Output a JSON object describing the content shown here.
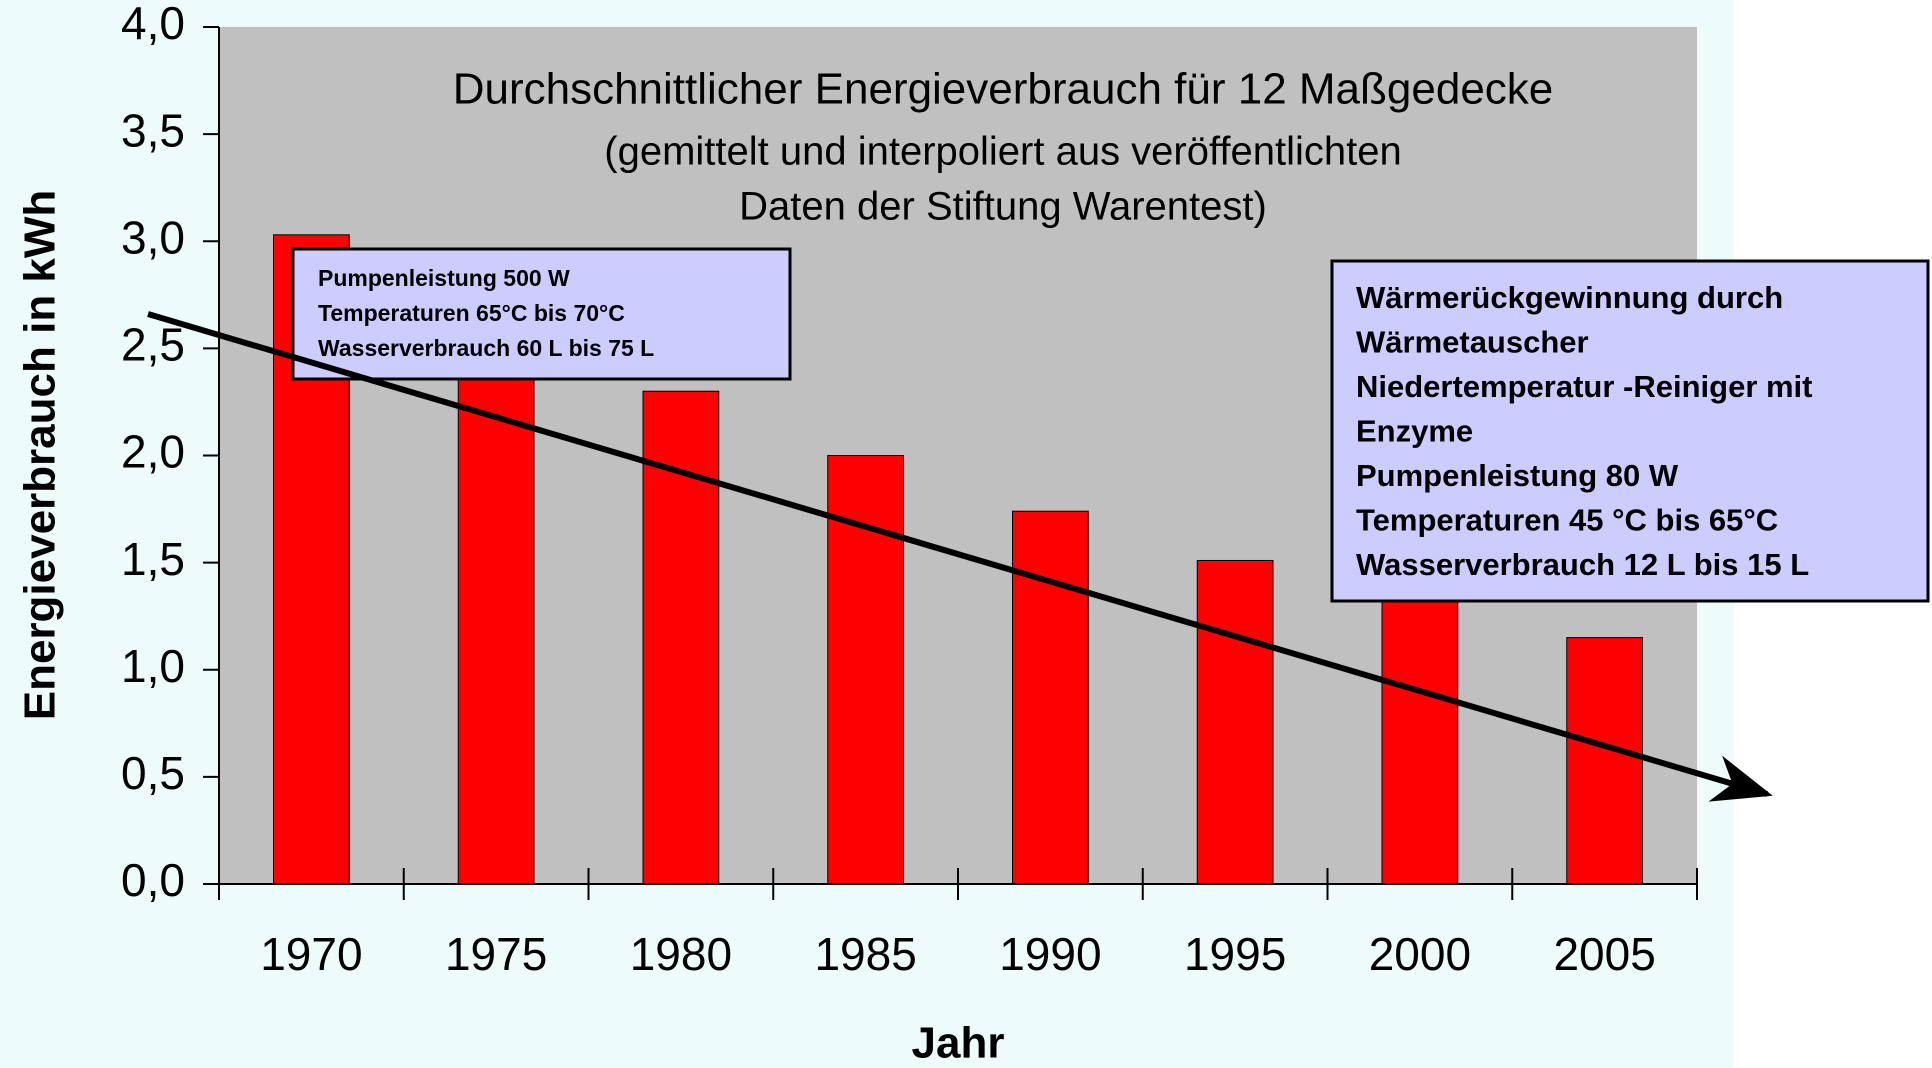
{
  "chart_data": {
    "type": "bar",
    "title": "Durchschnittlicher Energieverbrauch für 12 Maßgedecke",
    "subtitle": [
      "(gemittelt und interpoliert aus veröffentlichten",
      "Daten der Stiftung Warentest)"
    ],
    "x_label": "Jahr",
    "y_label": "Energieverbrauch in kWh",
    "categories": [
      "1970",
      "1975",
      "1980",
      "1985",
      "1990",
      "1995",
      "2000",
      "2005"
    ],
    "values": [
      3.03,
      2.45,
      2.3,
      2.0,
      1.74,
      1.51,
      1.35,
      1.15
    ],
    "color": "#ff0000",
    "ylim": [
      0,
      4
    ],
    "yticks": [
      {
        "value": 0,
        "label": "0,0"
      },
      {
        "value": 0.5,
        "label": "0,5"
      },
      {
        "value": 1,
        "label": "1,0"
      },
      {
        "value": 1.5,
        "label": "1,5"
      },
      {
        "value": 2,
        "label": "2,0"
      },
      {
        "value": 2.5,
        "label": "2,5"
      },
      {
        "value": 3,
        "label": "3,0"
      },
      {
        "value": 3.5,
        "label": "3,5"
      },
      {
        "value": 4,
        "label": "4,0"
      }
    ],
    "grid": true,
    "annotations": [
      [
        "Pumpenleistung 500 W",
        "Temperaturen 65°C bis 70°C",
        "Wasserverbrauch 60 L bis 75 L"
      ],
      [
        "Wärmerückgewinnung durch",
        "Wärmetauscher",
        "Niedertemperatur -Reiniger mit",
        "Enzyme",
        "Pumpenleistung 80 W",
        "Temperaturen 45 °C bis 65°C",
        "Wasserverbrauch 12 L bis 15 L"
      ]
    ]
  }
}
